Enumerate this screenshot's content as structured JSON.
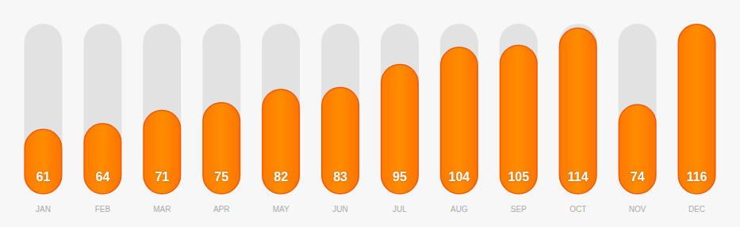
{
  "chart_data": {
    "type": "bar",
    "categories": [
      "JAN",
      "FEB",
      "MAR",
      "APR",
      "MAY",
      "JUN",
      "JUL",
      "AUG",
      "SEP",
      "OCT",
      "NOV",
      "DEC"
    ],
    "values": [
      61,
      64,
      71,
      75,
      82,
      83,
      95,
      104,
      105,
      114,
      74,
      116
    ],
    "color": "#ff8c00",
    "ylim": [
      27,
      116
    ],
    "data_labels": true,
    "tick_labels": "x",
    "grid": false
  }
}
